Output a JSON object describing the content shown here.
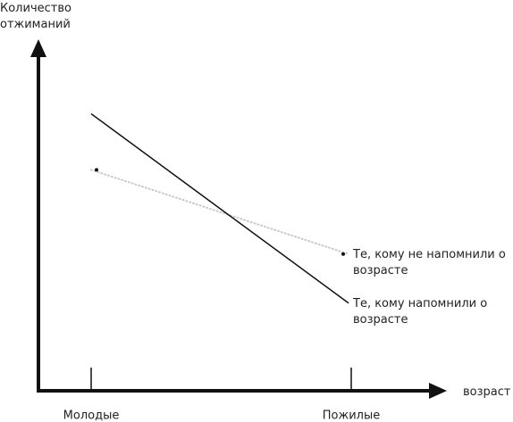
{
  "chart_data": {
    "type": "line",
    "y_label": "Количество отжиманий",
    "x_label": "возраст",
    "categories": [
      "Молодые",
      "Пожилые"
    ],
    "ylim": [
      0,
      100
    ],
    "series": [
      {
        "name": "Те, кому не напомнили о возрасте",
        "color": "#c8c8c8",
        "style": "dotted",
        "values": [
          63,
          39
        ]
      },
      {
        "name": "Те, кому напомнили о возрасте",
        "color": "#111111",
        "style": "solid",
        "values": [
          79,
          25
        ]
      }
    ]
  }
}
